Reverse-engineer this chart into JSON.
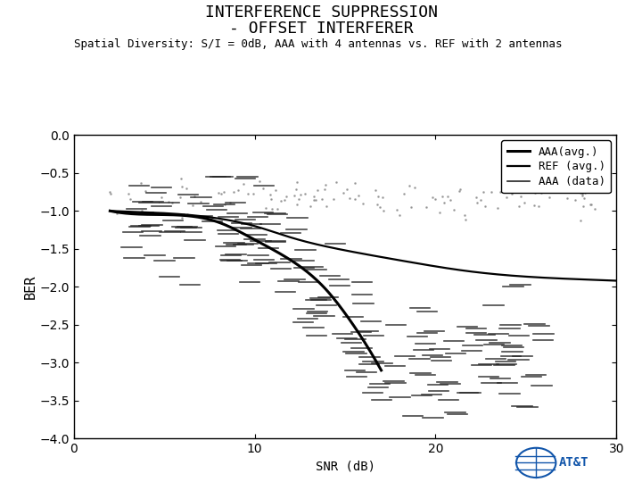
{
  "title_line1": "INTERFERENCE SUPPRESSION",
  "title_line2": "- OFFSET INTERFERER",
  "subtitle": "Spatial Diversity: S/I = 0dB, AAA with 4 antennas vs. REF with 2 antennas",
  "xlabel": "SNR (dB)",
  "ylabel": "BER",
  "xlim": [
    0,
    30
  ],
  "ylim": [
    -4,
    0
  ],
  "yticks": [
    0,
    -0.5,
    -1,
    -1.5,
    -2,
    -2.5,
    -3,
    -3.5,
    -4
  ],
  "xticks": [
    0,
    10,
    20,
    30
  ],
  "bg_color": "#ffffff",
  "curve_color": "#000000",
  "dash_color": "#222222",
  "dot_color": "#888888",
  "legend_labels": [
    "AAA(avg.)",
    "REF (avg.)",
    "AAA (data)"
  ],
  "aaa_points": [
    [
      2,
      -1.0
    ],
    [
      5,
      -1.05
    ],
    [
      8,
      -1.15
    ],
    [
      10,
      -1.38
    ],
    [
      12,
      -1.65
    ],
    [
      14,
      -2.05
    ],
    [
      15,
      -2.35
    ],
    [
      16,
      -2.7
    ],
    [
      17,
      -3.1
    ]
  ],
  "ref_points": [
    [
      2,
      -1.0
    ],
    [
      5,
      -1.03
    ],
    [
      8,
      -1.1
    ],
    [
      10,
      -1.2
    ],
    [
      12,
      -1.35
    ],
    [
      15,
      -1.52
    ],
    [
      18,
      -1.65
    ],
    [
      22,
      -1.8
    ],
    [
      26,
      -1.88
    ],
    [
      30,
      -1.92
    ]
  ]
}
